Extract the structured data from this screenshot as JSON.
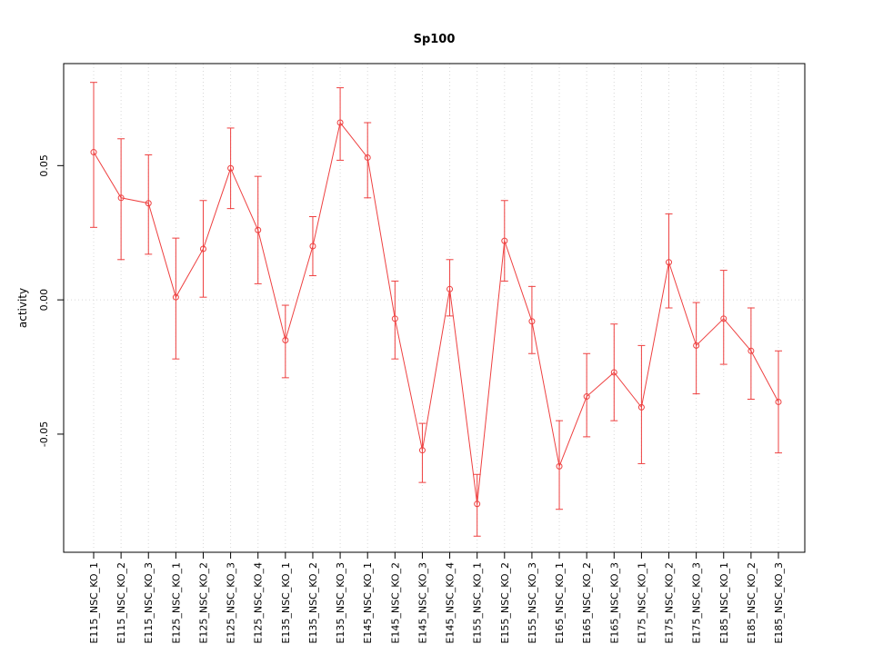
{
  "chart_data": {
    "type": "line",
    "title": "Sp100",
    "xlabel": "",
    "ylabel": "activity",
    "categories": [
      "E115_NSC_KO_1",
      "E115_NSC_KO_2",
      "E115_NSC_KO_3",
      "E125_NSC_KO_1",
      "E125_NSC_KO_2",
      "E125_NSC_KO_3",
      "E125_NSC_KO_4",
      "E135_NSC_KO_1",
      "E135_NSC_KO_2",
      "E135_NSC_KO_3",
      "E145_NSC_KO_1",
      "E145_NSC_KO_2",
      "E145_NSC_KO_3",
      "E145_NSC_KO_4",
      "E155_NSC_KO_1",
      "E155_NSC_KO_2",
      "E155_NSC_KO_3",
      "E165_NSC_KO_1",
      "E165_NSC_KO_2",
      "E165_NSC_KO_3",
      "E175_NSC_KO_1",
      "E175_NSC_KO_2",
      "E175_NSC_KO_3",
      "E185_NSC_KO_1",
      "E185_NSC_KO_2",
      "E185_NSC_KO_3"
    ],
    "series": [
      {
        "name": "activity",
        "means": [
          0.055,
          0.038,
          0.036,
          0.001,
          0.019,
          0.049,
          0.026,
          -0.015,
          0.02,
          0.066,
          0.053,
          -0.007,
          -0.056,
          0.004,
          -0.076,
          0.022,
          -0.008,
          -0.062,
          -0.036,
          -0.027,
          -0.04,
          0.014,
          -0.017,
          -0.007,
          -0.019,
          -0.038
        ],
        "upper": [
          0.081,
          0.06,
          0.054,
          0.023,
          0.037,
          0.064,
          0.046,
          -0.002,
          0.031,
          0.079,
          0.066,
          0.007,
          -0.046,
          0.015,
          -0.065,
          0.037,
          0.005,
          -0.045,
          -0.02,
          -0.009,
          -0.017,
          0.032,
          -0.001,
          0.011,
          -0.003,
          -0.019
        ],
        "lower": [
          0.027,
          0.015,
          0.017,
          -0.022,
          0.001,
          0.034,
          0.006,
          -0.029,
          0.009,
          0.052,
          0.038,
          -0.022,
          -0.068,
          -0.006,
          -0.088,
          0.007,
          -0.02,
          -0.078,
          -0.051,
          -0.045,
          -0.061,
          -0.003,
          -0.035,
          -0.024,
          -0.037,
          -0.057
        ]
      }
    ],
    "error_bars": true,
    "point_style": "open-circle",
    "yticks": [
      -0.05,
      0,
      0.05
    ],
    "ytick_labels": [
      "-0.05",
      "0.00",
      "0.05"
    ],
    "ylim": [
      -0.094,
      0.088
    ],
    "grid": {
      "vertical_dotted_per_category": true,
      "horizontal_dotted_at_zero": true
    },
    "legend": "none",
    "colors": {
      "series": "#ee4040",
      "grid": "#d8d8d8",
      "axis": "#000000",
      "background": "#ffffff"
    }
  }
}
